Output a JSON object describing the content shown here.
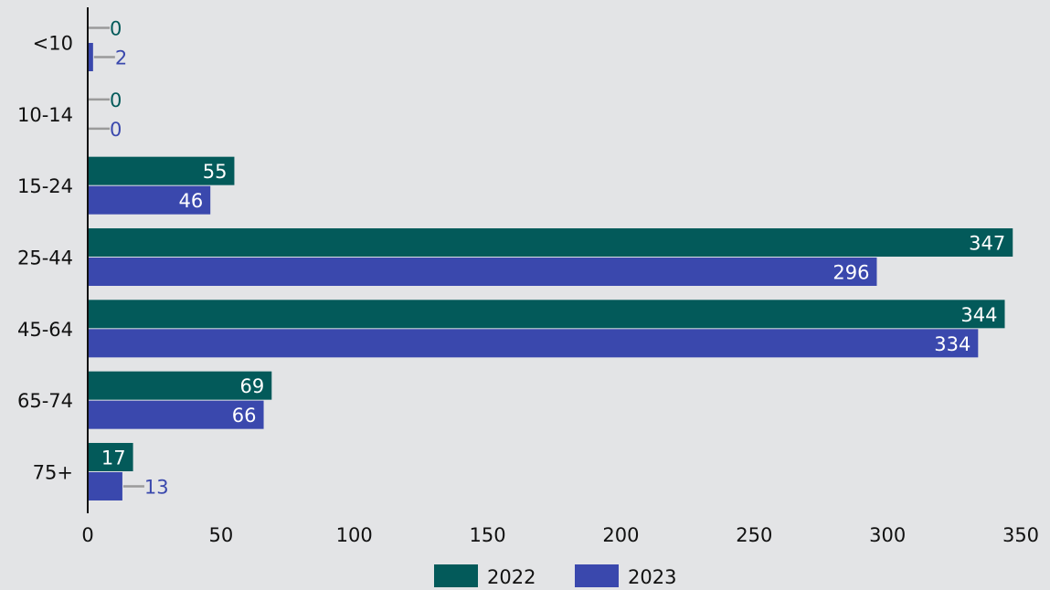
{
  "chart_data": {
    "type": "bar",
    "orientation": "horizontal",
    "categories": [
      "<10",
      "10-14",
      "15-24",
      "25-44",
      "45-64",
      "65-74",
      "75+"
    ],
    "series": [
      {
        "name": "2022",
        "color": "#035a5a",
        "values": [
          0,
          0,
          55,
          347,
          344,
          69,
          17
        ]
      },
      {
        "name": "2023",
        "color": "#3a48ad",
        "values": [
          2,
          0,
          46,
          296,
          334,
          66,
          13
        ]
      }
    ],
    "x_ticks": [
      "0",
      "50",
      "100",
      "150",
      "200",
      "250",
      "300",
      "350"
    ],
    "xlim": [
      0,
      350
    ],
    "grid": false,
    "legend_position": "bottom-center",
    "title": "",
    "xlabel": "",
    "ylabel": ""
  },
  "colors": {
    "background": "#e3e4e6",
    "axis": "#111111",
    "leader_line": "#9a9a9a"
  }
}
